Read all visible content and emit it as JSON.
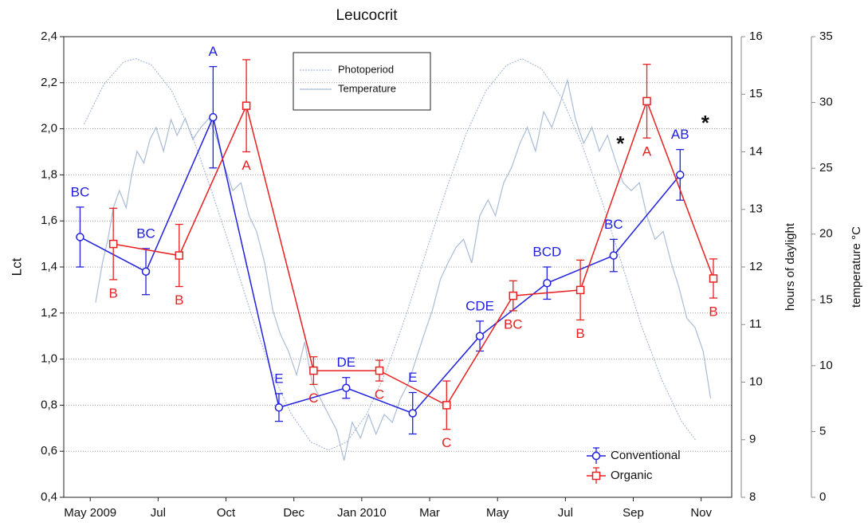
{
  "chart_data": {
    "type": "line",
    "title": "Leucocrit",
    "ylabel": "Lct",
    "y2label": "hours of daylight",
    "y3label": "temperature °C",
    "xlim": [
      -0.39,
      9.45
    ],
    "xticks": [
      {
        "value": 0,
        "label": "May 2009"
      },
      {
        "value": 1,
        "label": "Jul"
      },
      {
        "value": 2,
        "label": "Oct"
      },
      {
        "value": 3,
        "label": "Dec"
      },
      {
        "value": 4,
        "label": "Jan 2010"
      },
      {
        "value": 5,
        "label": "Mar"
      },
      {
        "value": 6,
        "label": "May"
      },
      {
        "value": 7,
        "label": "Jul"
      },
      {
        "value": 8,
        "label": "Sep"
      },
      {
        "value": 9,
        "label": "Nov"
      }
    ],
    "ylim": [
      0.4,
      2.4
    ],
    "yticks": [
      {
        "value": 0.4,
        "label": "0,4"
      },
      {
        "value": 0.6,
        "label": "0,6"
      },
      {
        "value": 0.8,
        "label": "0,8"
      },
      {
        "value": 1.0,
        "label": "1,0"
      },
      {
        "value": 1.2,
        "label": "1,2"
      },
      {
        "value": 1.4,
        "label": "1,4"
      },
      {
        "value": 1.6,
        "label": "1,6"
      },
      {
        "value": 1.8,
        "label": "1,8"
      },
      {
        "value": 2.0,
        "label": "2,0"
      },
      {
        "value": 2.2,
        "label": "2,2"
      },
      {
        "value": 2.4,
        "label": "2,4"
      }
    ],
    "y2lim": [
      8,
      16
    ],
    "y2ticks": [
      8,
      9,
      10,
      11,
      12,
      13,
      14,
      15,
      16
    ],
    "y3lim": [
      0,
      35
    ],
    "y3ticks": [
      0,
      5,
      10,
      15,
      20,
      25,
      30,
      35
    ],
    "grid": true,
    "series": [
      {
        "name": "Conventional",
        "color": "#2020e0",
        "marker": "circle",
        "x": [
          -0.15,
          0.82,
          1.81,
          2.78,
          3.77,
          4.75,
          5.74,
          6.73,
          7.71,
          8.69
        ],
        "values": [
          1.53,
          1.38,
          2.05,
          0.79,
          0.875,
          0.765,
          1.1,
          1.33,
          1.45,
          1.8
        ],
        "errors": [
          0.13,
          0.1,
          0.22,
          0.06,
          0.045,
          0.09,
          0.065,
          0.07,
          0.07,
          0.11
        ],
        "group_labels": [
          "BC",
          "BC",
          "A",
          "E",
          "DE",
          "E",
          "CDE",
          "BCD",
          "BC",
          "AB"
        ]
      },
      {
        "name": "Organic",
        "color": "#e82020",
        "marker": "square",
        "x": [
          0.34,
          1.31,
          2.3,
          3.29,
          4.26,
          5.25,
          6.23,
          7.22,
          8.2,
          9.18
        ],
        "values": [
          1.5,
          1.45,
          2.1,
          0.95,
          0.95,
          0.8,
          1.275,
          1.3,
          2.12,
          1.35
        ],
        "errors": [
          0.155,
          0.135,
          0.2,
          0.06,
          0.045,
          0.105,
          0.065,
          0.13,
          0.16,
          0.085
        ],
        "group_labels": [
          "B",
          "B",
          "A",
          "C",
          "C",
          "C",
          "BC",
          "B",
          "A",
          "B"
        ]
      },
      {
        "name": "Photoperiod",
        "color": "#a9bcd6",
        "axis": "y2",
        "dashed": true,
        "x": [
          -0.09,
          0.2,
          0.49,
          0.67,
          0.9,
          1.2,
          1.49,
          1.78,
          2.08,
          2.37,
          2.66,
          2.96,
          3.25,
          3.51,
          3.78,
          4.07,
          4.37,
          4.66,
          4.95,
          5.25,
          5.54,
          5.83,
          6.13,
          6.36,
          6.65,
          6.95,
          7.24,
          7.54,
          7.83,
          8.12,
          8.42,
          8.71,
          8.92
        ],
        "values": [
          14.48,
          15.17,
          15.56,
          15.62,
          15.51,
          15.06,
          14.32,
          13.35,
          12.27,
          11.19,
          10.21,
          9.45,
          8.96,
          8.82,
          8.96,
          9.44,
          10.22,
          11.19,
          12.27,
          13.36,
          14.32,
          15.06,
          15.5,
          15.62,
          15.44,
          14.93,
          14.14,
          13.14,
          12.06,
          10.98,
          10.04,
          9.32,
          8.99
        ]
      },
      {
        "name": "Temperature",
        "color": "#a9bcd6",
        "axis": "y3",
        "x": [
          0.08,
          0.18,
          0.26,
          0.34,
          0.43,
          0.53,
          0.61,
          0.69,
          0.79,
          0.88,
          0.97,
          1.08,
          1.19,
          1.28,
          1.4,
          1.51,
          1.63,
          1.75,
          1.87,
          1.98,
          2.1,
          2.22,
          2.34,
          2.45,
          2.57,
          2.69,
          2.8,
          2.92,
          3.04,
          3.16,
          3.27,
          3.39,
          3.51,
          3.63,
          3.74,
          3.86,
          3.98,
          4.1,
          4.21,
          4.33,
          4.45,
          4.57,
          4.69,
          4.8,
          4.92,
          5.04,
          5.16,
          5.27,
          5.39,
          5.5,
          5.62,
          5.74,
          5.86,
          5.97,
          6.09,
          6.21,
          6.33,
          6.44,
          6.56,
          6.68,
          6.8,
          6.92,
          7.03,
          7.15,
          7.27,
          7.39,
          7.5,
          7.62,
          7.73,
          7.85,
          7.97,
          8.09,
          8.2,
          8.32,
          8.44,
          8.56,
          8.67,
          8.79,
          8.91,
          9.03,
          9.14
        ],
        "values": [
          14.8,
          17.8,
          19.6,
          22.0,
          23.3,
          22.0,
          24.5,
          26.3,
          25.4,
          27.2,
          28.1,
          26.3,
          28.7,
          27.5,
          28.8,
          27.2,
          28.1,
          28.8,
          27.2,
          25.1,
          23.3,
          23.9,
          21.4,
          20.2,
          17.8,
          14.2,
          12.4,
          11.1,
          9.3,
          11.8,
          8.7,
          7.5,
          6.3,
          5.1,
          2.8,
          5.7,
          4.5,
          6.3,
          4.8,
          6.3,
          5.7,
          7.5,
          8.7,
          10.5,
          12.4,
          14.2,
          16.6,
          17.8,
          19.0,
          19.6,
          17.8,
          21.4,
          22.6,
          21.4,
          23.9,
          25.1,
          26.9,
          28.1,
          26.3,
          29.3,
          28.1,
          29.9,
          31.7,
          28.7,
          26.9,
          28.1,
          26.3,
          27.5,
          25.7,
          23.9,
          23.3,
          23.9,
          21.4,
          19.6,
          20.2,
          17.8,
          16.0,
          13.6,
          12.9,
          11.1,
          7.5
        ]
      }
    ],
    "annotations": [
      {
        "text": "*",
        "x": 7.81,
        "y": 1.95
      },
      {
        "text": "*",
        "x": 9.06,
        "y": 2.04
      }
    ]
  }
}
